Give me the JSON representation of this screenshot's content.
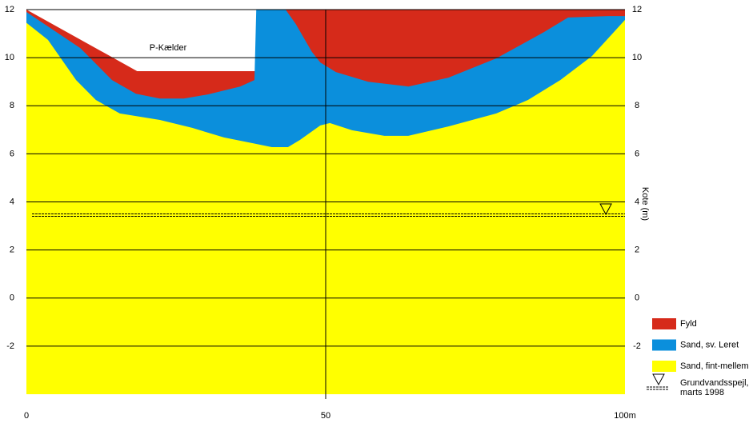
{
  "chart_data": {
    "type": "area",
    "annotation": "P-Kælder",
    "y2_label": "Kote (m)",
    "xlim": [
      0,
      100
    ],
    "xticks": [
      0,
      50,
      {
        "value": 100,
        "label": "100m"
      }
    ],
    "ylim": [
      -4,
      12
    ],
    "yticks": [
      -2,
      0,
      2,
      4,
      6,
      8,
      10,
      12
    ],
    "grid": true,
    "legend": "right",
    "series": [
      {
        "name": "Fyld",
        "color": "#d62a1a",
        "x": [
          0,
          18.5,
          38.5,
          38.5,
          100
        ],
        "values": [
          12,
          9.44,
          9.44,
          12,
          12
        ]
      },
      {
        "name": "Sand, sv. Leret",
        "color": "#0b8fdc",
        "x": [
          0,
          9,
          14.3,
          18.3,
          22.3,
          26.3,
          30.3,
          35.7,
          38.1,
          38.4,
          43.3,
          45,
          47.7,
          49.1,
          51.7,
          57.1,
          63.8,
          70.5,
          78.5,
          86.5,
          90.5,
          97.2,
          100
        ],
        "values": [
          11.9,
          10.4,
          9.07,
          8.5,
          8.3,
          8.3,
          8.47,
          8.8,
          9.07,
          12,
          12,
          11.4,
          10.24,
          9.8,
          9.4,
          9.0,
          8.8,
          9.17,
          9.97,
          11.07,
          11.67,
          11.73,
          11.73
        ]
      },
      {
        "name": "Sand, fint-mellem",
        "color": "#ffff00",
        "x": [
          0,
          3.6,
          8.3,
          11.6,
          15.6,
          22.3,
          27.7,
          33,
          38.4,
          41,
          43.7,
          45.7,
          49.1,
          50.7,
          54.4,
          59.8,
          63.8,
          70.5,
          78.5,
          83.8,
          89.2,
          94.5,
          100
        ],
        "values": [
          11.45,
          10.74,
          9.07,
          8.24,
          7.68,
          7.41,
          7.08,
          6.68,
          6.41,
          6.28,
          6.28,
          6.58,
          7.18,
          7.28,
          6.98,
          6.75,
          6.75,
          7.14,
          7.68,
          8.24,
          9.07,
          10.07,
          11.57
        ]
      }
    ],
    "groundwater": {
      "name": [
        "Grundvandsspejl,",
        "marts 1998"
      ],
      "level": 3.45,
      "marker_x": 96.8
    }
  }
}
